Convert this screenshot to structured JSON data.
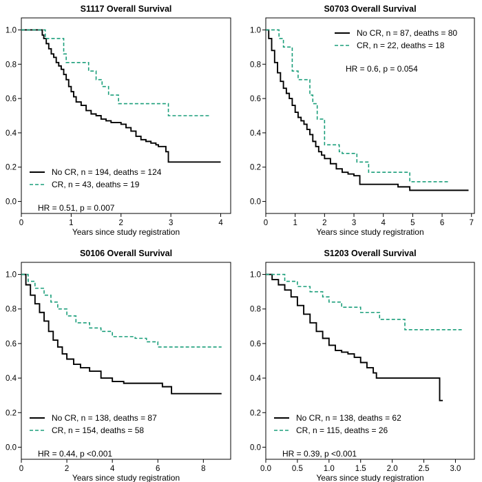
{
  "figure": {
    "colors": {
      "no_cr": "#000000",
      "cr": "#1a9e7a"
    }
  },
  "chart_data": [
    {
      "type": "line",
      "title": "S1117 Overall Survival",
      "xlabel": "Years since study registration",
      "ylabel": "",
      "xlim": [
        0,
        4.2
      ],
      "ylim": [
        0,
        1.0
      ],
      "xticks": [
        0,
        1,
        2,
        3,
        4
      ],
      "xtick_labels": [
        "0",
        "1",
        "2",
        "3",
        "4"
      ],
      "yticks": [
        0,
        0.2,
        0.4,
        0.6,
        0.8,
        1.0
      ],
      "ytick_labels": [
        "0.0",
        "0.2",
        "0.4",
        "0.6",
        "0.8",
        "1.0"
      ],
      "legend_position": "bottom-left",
      "annotation": "HR = 0.51, p = 0.007",
      "series": [
        {
          "name": "No CR, n = 194, deaths = 124",
          "style": "solid",
          "x": [
            0,
            0.42,
            0.45,
            0.5,
            0.55,
            0.6,
            0.65,
            0.7,
            0.75,
            0.8,
            0.85,
            0.9,
            0.95,
            1.0,
            1.05,
            1.1,
            1.2,
            1.3,
            1.4,
            1.5,
            1.6,
            1.7,
            1.8,
            2.0,
            2.1,
            2.2,
            2.3,
            2.4,
            2.5,
            2.6,
            2.7,
            2.75,
            2.9,
            2.95,
            4.0
          ],
          "y": [
            1.0,
            0.97,
            0.95,
            0.92,
            0.89,
            0.86,
            0.84,
            0.81,
            0.79,
            0.77,
            0.74,
            0.71,
            0.67,
            0.64,
            0.61,
            0.58,
            0.56,
            0.53,
            0.51,
            0.5,
            0.48,
            0.47,
            0.46,
            0.45,
            0.43,
            0.41,
            0.38,
            0.36,
            0.35,
            0.34,
            0.33,
            0.32,
            0.29,
            0.23,
            0.23
          ]
        },
        {
          "name": "CR, n = 43, deaths = 19",
          "style": "dashed",
          "x": [
            0,
            0.48,
            0.85,
            0.9,
            1.05,
            1.35,
            1.5,
            1.62,
            1.75,
            1.95,
            2.95,
            3.8
          ],
          "y": [
            1.0,
            0.95,
            0.86,
            0.81,
            0.81,
            0.76,
            0.71,
            0.67,
            0.62,
            0.57,
            0.5,
            0.5
          ]
        }
      ]
    },
    {
      "type": "line",
      "title": "S0703 Overall Survival",
      "xlabel": "Years since study registration",
      "ylabel": "",
      "xlim": [
        0,
        7.1
      ],
      "ylim": [
        0,
        1.0
      ],
      "xticks": [
        0,
        1,
        2,
        3,
        4,
        5,
        6,
        7
      ],
      "xtick_labels": [
        "0",
        "1",
        "2",
        "3",
        "4",
        "5",
        "6",
        "7"
      ],
      "yticks": [
        0,
        0.2,
        0.4,
        0.6,
        0.8,
        1.0
      ],
      "ytick_labels": [
        "0.0",
        "0.2",
        "0.4",
        "0.6",
        "0.8",
        "1.0"
      ],
      "legend_position": "top-right",
      "annotation": "HR = 0.6, p = 0.054",
      "series": [
        {
          "name": "No CR, n = 87, deaths = 80",
          "style": "solid",
          "x": [
            0,
            0.1,
            0.2,
            0.3,
            0.4,
            0.5,
            0.6,
            0.7,
            0.8,
            0.9,
            1.0,
            1.1,
            1.2,
            1.3,
            1.4,
            1.5,
            1.6,
            1.7,
            1.8,
            1.9,
            2.0,
            2.2,
            2.4,
            2.6,
            2.8,
            3.0,
            3.2,
            4.5,
            4.9,
            6.9
          ],
          "y": [
            1.0,
            0.95,
            0.88,
            0.81,
            0.75,
            0.7,
            0.66,
            0.63,
            0.6,
            0.56,
            0.52,
            0.49,
            0.47,
            0.45,
            0.42,
            0.39,
            0.35,
            0.32,
            0.29,
            0.27,
            0.25,
            0.22,
            0.19,
            0.17,
            0.16,
            0.15,
            0.1,
            0.085,
            0.065,
            0.065
          ]
        },
        {
          "name": "CR, n = 22, deaths = 18",
          "style": "dashed",
          "x": [
            0,
            0.45,
            0.6,
            0.9,
            1.1,
            1.5,
            1.6,
            1.75,
            2.0,
            2.5,
            2.6,
            3.1,
            3.5,
            4.9,
            6.2
          ],
          "y": [
            1.0,
            0.95,
            0.9,
            0.76,
            0.71,
            0.62,
            0.57,
            0.48,
            0.33,
            0.29,
            0.28,
            0.23,
            0.17,
            0.115,
            0.115
          ]
        }
      ]
    },
    {
      "type": "line",
      "title": "S0106 Overall Survival",
      "xlabel": "Years since study registration",
      "ylabel": "",
      "xlim": [
        0,
        9.2
      ],
      "ylim": [
        0,
        1.0
      ],
      "xticks": [
        0,
        2,
        4,
        6,
        8
      ],
      "xtick_labels": [
        "0",
        "2",
        "4",
        "6",
        "8"
      ],
      "yticks": [
        0,
        0.2,
        0.4,
        0.6,
        0.8,
        1.0
      ],
      "ytick_labels": [
        "0.0",
        "0.2",
        "0.4",
        "0.6",
        "0.8",
        "1.0"
      ],
      "legend_position": "bottom-left",
      "annotation": "HR = 0.44, p <0.001",
      "series": [
        {
          "name": "No CR, n = 138, deaths = 87",
          "style": "solid",
          "x": [
            0,
            0.2,
            0.4,
            0.6,
            0.8,
            1.0,
            1.2,
            1.4,
            1.6,
            1.8,
            2.0,
            2.3,
            2.6,
            3.0,
            3.5,
            4.0,
            4.5,
            5.0,
            6.2,
            6.6,
            8.8
          ],
          "y": [
            1.0,
            0.94,
            0.88,
            0.83,
            0.78,
            0.73,
            0.67,
            0.62,
            0.58,
            0.54,
            0.51,
            0.48,
            0.46,
            0.44,
            0.4,
            0.38,
            0.37,
            0.37,
            0.35,
            0.31,
            0.31
          ]
        },
        {
          "name": "CR, n = 154, deaths = 58",
          "style": "dashed",
          "x": [
            0,
            0.3,
            0.6,
            1.0,
            1.3,
            1.6,
            2.0,
            2.4,
            3.0,
            3.5,
            4.0,
            5.0,
            5.5,
            6.0,
            8.8
          ],
          "y": [
            1.0,
            0.96,
            0.92,
            0.88,
            0.84,
            0.8,
            0.76,
            0.72,
            0.69,
            0.67,
            0.64,
            0.63,
            0.61,
            0.58,
            0.58
          ]
        }
      ]
    },
    {
      "type": "line",
      "title": "S1203 Overall Survival",
      "xlabel": "Years since study registration",
      "ylabel": "",
      "xlim": [
        0,
        3.3
      ],
      "ylim": [
        0,
        1.0
      ],
      "xticks": [
        0,
        0.5,
        1.0,
        1.5,
        2.0,
        2.5,
        3.0
      ],
      "xtick_labels": [
        "0.0",
        "0.5",
        "1.0",
        "1.5",
        "2.0",
        "2.5",
        "3.0"
      ],
      "yticks": [
        0,
        0.2,
        0.4,
        0.6,
        0.8,
        1.0
      ],
      "ytick_labels": [
        "0.0",
        "0.2",
        "0.4",
        "0.6",
        "0.8",
        "1.0"
      ],
      "legend_position": "bottom-left",
      "annotation": "HR = 0.39, p <0.001",
      "series": [
        {
          "name": "No CR, n = 138, deaths = 62",
          "style": "solid",
          "x": [
            0,
            0.1,
            0.2,
            0.3,
            0.4,
            0.5,
            0.6,
            0.7,
            0.8,
            0.9,
            1.0,
            1.1,
            1.2,
            1.3,
            1.4,
            1.5,
            1.6,
            1.7,
            1.75,
            2.75,
            2.8
          ],
          "y": [
            1.0,
            0.97,
            0.94,
            0.91,
            0.87,
            0.82,
            0.77,
            0.72,
            0.67,
            0.63,
            0.59,
            0.56,
            0.55,
            0.54,
            0.52,
            0.49,
            0.46,
            0.43,
            0.4,
            0.27,
            0.27
          ]
        },
        {
          "name": "CR, n = 115, deaths = 26",
          "style": "dashed",
          "x": [
            0,
            0.3,
            0.5,
            0.7,
            0.9,
            1.0,
            1.2,
            1.5,
            1.8,
            2.2,
            3.1
          ],
          "y": [
            1.0,
            0.96,
            0.93,
            0.9,
            0.87,
            0.84,
            0.81,
            0.78,
            0.74,
            0.68,
            0.68
          ]
        }
      ]
    }
  ]
}
